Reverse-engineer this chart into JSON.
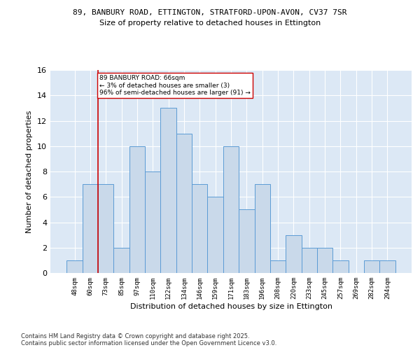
{
  "title1": "89, BANBURY ROAD, ETTINGTON, STRATFORD-UPON-AVON, CV37 7SR",
  "title2": "Size of property relative to detached houses in Ettington",
  "xlabel": "Distribution of detached houses by size in Ettington",
  "ylabel": "Number of detached properties",
  "categories": [
    "48sqm",
    "60sqm",
    "73sqm",
    "85sqm",
    "97sqm",
    "110sqm",
    "122sqm",
    "134sqm",
    "146sqm",
    "159sqm",
    "171sqm",
    "183sqm",
    "196sqm",
    "208sqm",
    "220sqm",
    "233sqm",
    "245sqm",
    "257sqm",
    "269sqm",
    "282sqm",
    "294sqm"
  ],
  "values": [
    1,
    7,
    7,
    2,
    10,
    8,
    13,
    11,
    7,
    6,
    10,
    5,
    7,
    1,
    3,
    2,
    2,
    1,
    0,
    1,
    1
  ],
  "bar_color": "#c9d9ea",
  "bar_edge_color": "#5b9bd5",
  "vline_x": 1.5,
  "annotation_text": "89 BANBURY ROAD: 66sqm\n← 3% of detached houses are smaller (3)\n96% of semi-detached houses are larger (91) →",
  "annotation_box_color": "#ffffff",
  "annotation_box_edge": "#cc0000",
  "vline_color": "#cc0000",
  "footer": "Contains HM Land Registry data © Crown copyright and database right 2025.\nContains public sector information licensed under the Open Government Licence v3.0.",
  "ylim": [
    0,
    16
  ],
  "yticks": [
    0,
    2,
    4,
    6,
    8,
    10,
    12,
    14,
    16
  ],
  "bg_color": "#dce8f5",
  "fig_bg": "#ffffff",
  "grid_color": "#ffffff"
}
